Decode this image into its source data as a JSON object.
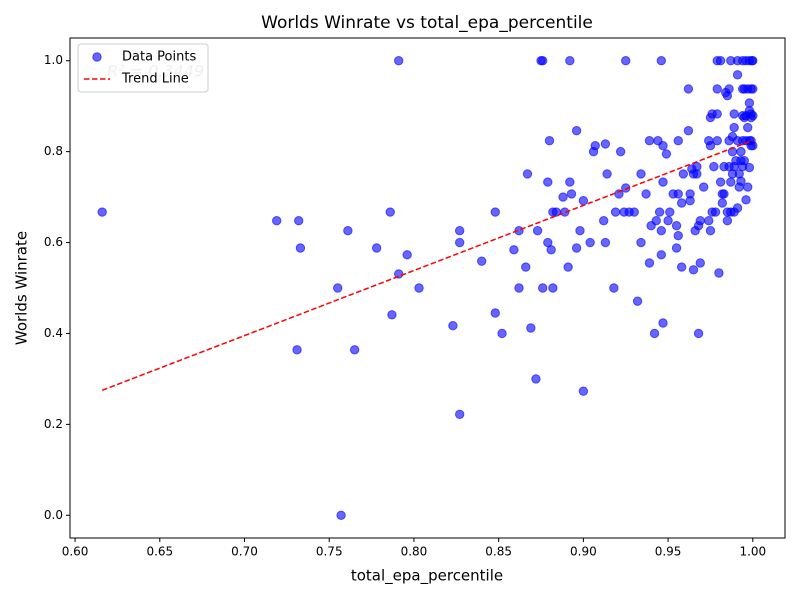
{
  "chart_data": {
    "type": "scatter",
    "title": "Worlds Winrate vs total_epa_percentile",
    "xlabel": "total_epa_percentile",
    "ylabel": "Worlds Winrate",
    "annotation": "R² = 0.3449",
    "legend": "upper left",
    "grid": false,
    "xlim": [
      0.597,
      1.019
    ],
    "ylim": [
      -0.05,
      1.05
    ],
    "xticks": [
      {
        "value": 0.6,
        "label": "0.60"
      },
      {
        "value": 0.65,
        "label": "0.65"
      },
      {
        "value": 0.7,
        "label": "0.70"
      },
      {
        "value": 0.75,
        "label": "0.75"
      },
      {
        "value": 0.8,
        "label": "0.80"
      },
      {
        "value": 0.85,
        "label": "0.85"
      },
      {
        "value": 0.9,
        "label": "0.90"
      },
      {
        "value": 0.95,
        "label": "0.95"
      },
      {
        "value": 1.0,
        "label": "1.00"
      }
    ],
    "yticks": [
      {
        "value": 0,
        "label": "0.0"
      },
      0.2,
      0.4,
      0.6,
      0.8,
      {
        "value": 1,
        "label": "1.0"
      }
    ],
    "series": [
      {
        "name": "Data Points",
        "kind": "points",
        "color": "#0000ff",
        "x": [
          0.616,
          0.719,
          0.732,
          0.733,
          0.731,
          0.755,
          0.757,
          0.761,
          0.765,
          0.778,
          0.786,
          0.787,
          0.791,
          0.791,
          0.796,
          0.803,
          0.823,
          0.827,
          0.827,
          0.827,
          0.84,
          0.848,
          0.848,
          0.852,
          0.859,
          0.862,
          0.862,
          0.866,
          0.867,
          0.869,
          0.872,
          0.873,
          0.875,
          0.876,
          0.876,
          0.879,
          0.879,
          0.88,
          0.881,
          0.882,
          0.882,
          0.884,
          0.888,
          0.889,
          0.891,
          0.892,
          0.892,
          0.893,
          0.896,
          0.896,
          0.898,
          0.9,
          0.9,
          0.904,
          0.906,
          0.907,
          0.912,
          0.913,
          0.913,
          0.914,
          0.918,
          0.919,
          0.922,
          0.921,
          0.924,
          0.925,
          0.925,
          0.927,
          0.93,
          0.932,
          0.934,
          0.934,
          0.937,
          0.939,
          0.939,
          0.94,
          0.942,
          0.943,
          0.944,
          0.945,
          0.946,
          0.946,
          0.946,
          0.947,
          0.947,
          0.947,
          0.949,
          0.95,
          0.951,
          0.953,
          0.955,
          0.955,
          0.956,
          0.956,
          0.956,
          0.958,
          0.958,
          0.959,
          0.962,
          0.962,
          0.963,
          0.963,
          0.964,
          0.965,
          0.965,
          0.966,
          0.967,
          0.967,
          0.968,
          0.969,
          0.969,
          0.968,
          0.971,
          0.974,
          0.974,
          0.975,
          0.975,
          0.976,
          0.975,
          0.976,
          0.977,
          0.978,
          0.979,
          0.979,
          0.979,
          0.979,
          0.98,
          0.981,
          0.981,
          0.982,
          0.982,
          0.983,
          0.983,
          0.984,
          0.985,
          0.985,
          0.985,
          0.986,
          0.986,
          0.986,
          0.987,
          0.987,
          0.987,
          0.988,
          0.988,
          0.988,
          0.989,
          0.989,
          0.989,
          0.989,
          0.99,
          0.991,
          0.991,
          0.991,
          0.991,
          0.992,
          0.992,
          0.993,
          0.993,
          0.993,
          0.994,
          0.994,
          0.994,
          0.994,
          0.994,
          0.995,
          0.995,
          0.995,
          0.996,
          0.996,
          0.996,
          0.996,
          0.997,
          0.997,
          0.997,
          0.998,
          0.998,
          0.998,
          0.998,
          0.998,
          0.999,
          0.999,
          0.999,
          0.9995,
          0.999,
          0.999,
          1.0,
          1.0,
          1.0,
          1.0
        ],
        "values": [
          0.667,
          0.648,
          0.648,
          0.588,
          0.364,
          0.5,
          0.0,
          0.626,
          0.364,
          0.588,
          0.667,
          0.441,
          1.0,
          0.531,
          0.573,
          0.5,
          0.417,
          0.626,
          0.6,
          0.222,
          0.559,
          0.445,
          0.667,
          0.4,
          0.584,
          0.5,
          0.626,
          0.546,
          0.751,
          0.412,
          0.3,
          0.626,
          1.0,
          1.0,
          0.5,
          0.733,
          0.6,
          0.824,
          0.584,
          0.5,
          0.667,
          0.667,
          0.7,
          0.667,
          0.546,
          0.733,
          1.0,
          0.707,
          0.846,
          0.588,
          0.626,
          0.692,
          0.273,
          0.6,
          0.8,
          0.813,
          0.648,
          0.6,
          0.817,
          0.751,
          0.5,
          0.667,
          0.8,
          0.707,
          0.667,
          1.0,
          0.72,
          0.667,
          0.667,
          0.471,
          0.6,
          0.751,
          0.707,
          0.824,
          0.555,
          0.637,
          0.4,
          0.648,
          0.824,
          0.667,
          0.626,
          1.0,
          0.573,
          0.733,
          0.423,
          0.813,
          0.795,
          0.648,
          0.667,
          0.707,
          0.637,
          0.588,
          0.707,
          0.824,
          0.615,
          0.546,
          0.687,
          0.751,
          0.938,
          0.846,
          0.692,
          0.707,
          0.762,
          0.751,
          0.54,
          0.626,
          0.751,
          0.767,
          0.637,
          0.648,
          0.555,
          0.4,
          0.722,
          0.648,
          0.824,
          0.875,
          0.813,
          0.883,
          0.626,
          0.667,
          0.767,
          0.667,
          0.883,
          0.938,
          1.0,
          0.824,
          0.533,
          1.0,
          0.733,
          0.707,
          0.687,
          0.767,
          0.707,
          0.93,
          0.667,
          0.648,
          0.923,
          0.824,
          0.767,
          0.938,
          1.0,
          0.667,
          0.733,
          0.8,
          0.751,
          0.833,
          0.667,
          0.883,
          0.767,
          0.853,
          0.78,
          0.676,
          1.0,
          0.824,
          0.969,
          0.751,
          0.722,
          0.78,
          0.8,
          0.735,
          0.938,
          0.879,
          0.824,
          1.0,
          0.767,
          0.875,
          0.938,
          0.78,
          0.694,
          0.879,
          0.824,
          1.0,
          0.853,
          0.938,
          0.722,
          0.765,
          0.89,
          0.907,
          0.824,
          1.0,
          0.938,
          0.875,
          0.813,
          1.0,
          0.883,
          0.824,
          1.0,
          0.938,
          0.813,
          0.879
        ]
      },
      {
        "name": "Trend Line",
        "kind": "line",
        "color": "#ff0000",
        "x": [
          0.616,
          1.0
        ],
        "values": [
          0.275,
          0.825
        ]
      }
    ]
  }
}
